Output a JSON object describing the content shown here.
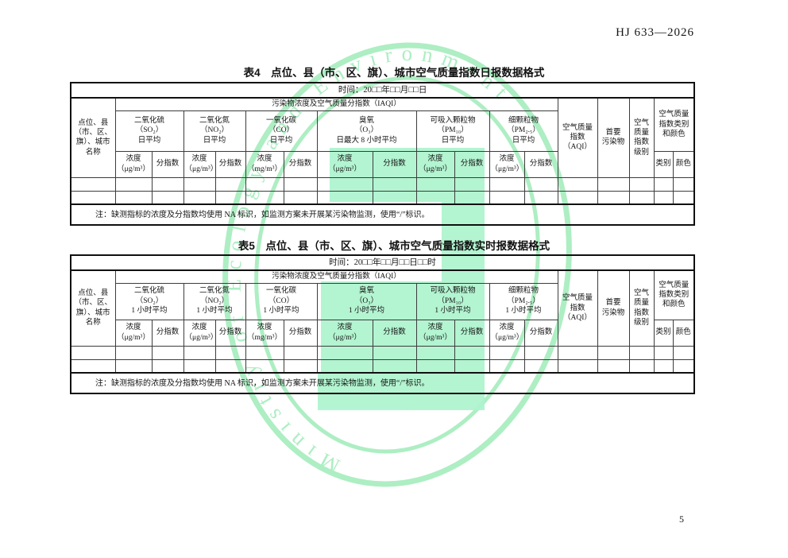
{
  "header": {
    "doc_number": "HJ 633—2026"
  },
  "footer": {
    "page_number": "5"
  },
  "watermark": {
    "arc_text": "Ministry of Ecology and Environment",
    "ring_color": "#9fecb9",
    "glyph_fill_color": "#adf4ce"
  },
  "table4": {
    "title": "表4　点位、县（市、区、旗）、城市空气质量指数日报数据格式",
    "time_label": "时间：20□□年□□月□□日",
    "site_header": "点位、县\n（市、区、\n旗）、城市\n名称",
    "iaqi_header": "污染物浓度及空气质量分指数（IAQI）",
    "pollutants": [
      {
        "name": "二氧化硫\n（SO₂）\n日平均",
        "conc": "浓度\n（μg/m³）",
        "idx": "分指数"
      },
      {
        "name": "二氧化氮\n（NO₂）\n日平均",
        "conc": "浓度\n（μg/m³）",
        "idx": "分指数"
      },
      {
        "name": "一氧化碳\n（CO）\n日平均",
        "conc": "浓度\n（mg/m³）",
        "idx": "分指数"
      },
      {
        "name": "臭氧\n（O₃）\n日最大 8 小时平均",
        "conc": "浓度\n（μg/m³）",
        "idx": "分指数"
      },
      {
        "name": "可吸入颗粒物\n（PM₁₀）\n日平均",
        "conc": "浓度\n（μg/m³）",
        "idx": "分指数"
      },
      {
        "name": "细颗粒物\n（PM₂.₅）\n日平均",
        "conc": "浓度\n（μg/m³）",
        "idx": "分指数"
      }
    ],
    "aqi_header": "空气质量\n指数\n（AQI）",
    "primary_header": "首要\n污染物",
    "level_header": "空气\n质量\n指数\n级别",
    "cat_color_header": "空气质量\n指数类别\n和颜色",
    "cat_header": "类别",
    "color_header": "颜色",
    "note": "注：缺测指标的浓度及分指数均使用 NA 标识，如监测方案未开展某污染物监测，使用“/”标识。"
  },
  "table5": {
    "title": "表5　点位、县（市、区、旗）、城市空气质量指数实时报数据格式",
    "time_label": "时间：20□□年□□月□□日□□时",
    "site_header": "点位、县\n（市、区、\n旗）、城市\n名称",
    "iaqi_header": "污染物浓度及空气质量分指数（IAQI）",
    "pollutants": [
      {
        "name": "二氧化硫\n（SO₂）\n1 小时平均",
        "conc": "浓度\n（μg/m³）",
        "idx": "分指数"
      },
      {
        "name": "二氧化氮\n（NO₂）\n1 小时平均",
        "conc": "浓度\n（μg/m³）",
        "idx": "分指数"
      },
      {
        "name": "一氧化碳\n（CO）\n1 小时平均",
        "conc": "浓度\n（mg/m³）",
        "idx": "分指数"
      },
      {
        "name": "臭氧\n（O₃）\n1 小时平均",
        "conc": "浓度\n（μg/m³）",
        "idx": "分指数"
      },
      {
        "name": "可吸入颗粒物\n（PM₁₀）\n1 小时平均",
        "conc": "浓度\n（μg/m³）",
        "idx": "分指数"
      },
      {
        "name": "细颗粒物\n（PM₂.₅）\n1 小时平均",
        "conc": "浓度\n（μg/m³）",
        "idx": "分指数"
      }
    ],
    "aqi_header": "空气质量\n指数\n（AQI）",
    "primary_header": "首要\n污染物",
    "level_header": "空气\n质量\n指数\n级别",
    "cat_color_header": "空气质量\n指数类别\n和颜色",
    "cat_header": "类别",
    "color_header": "颜色",
    "note": "注：缺测指标的浓度及分指数均使用 NA 标识，如监测方案未开展某污染物监测，使用“/”标识。"
  }
}
